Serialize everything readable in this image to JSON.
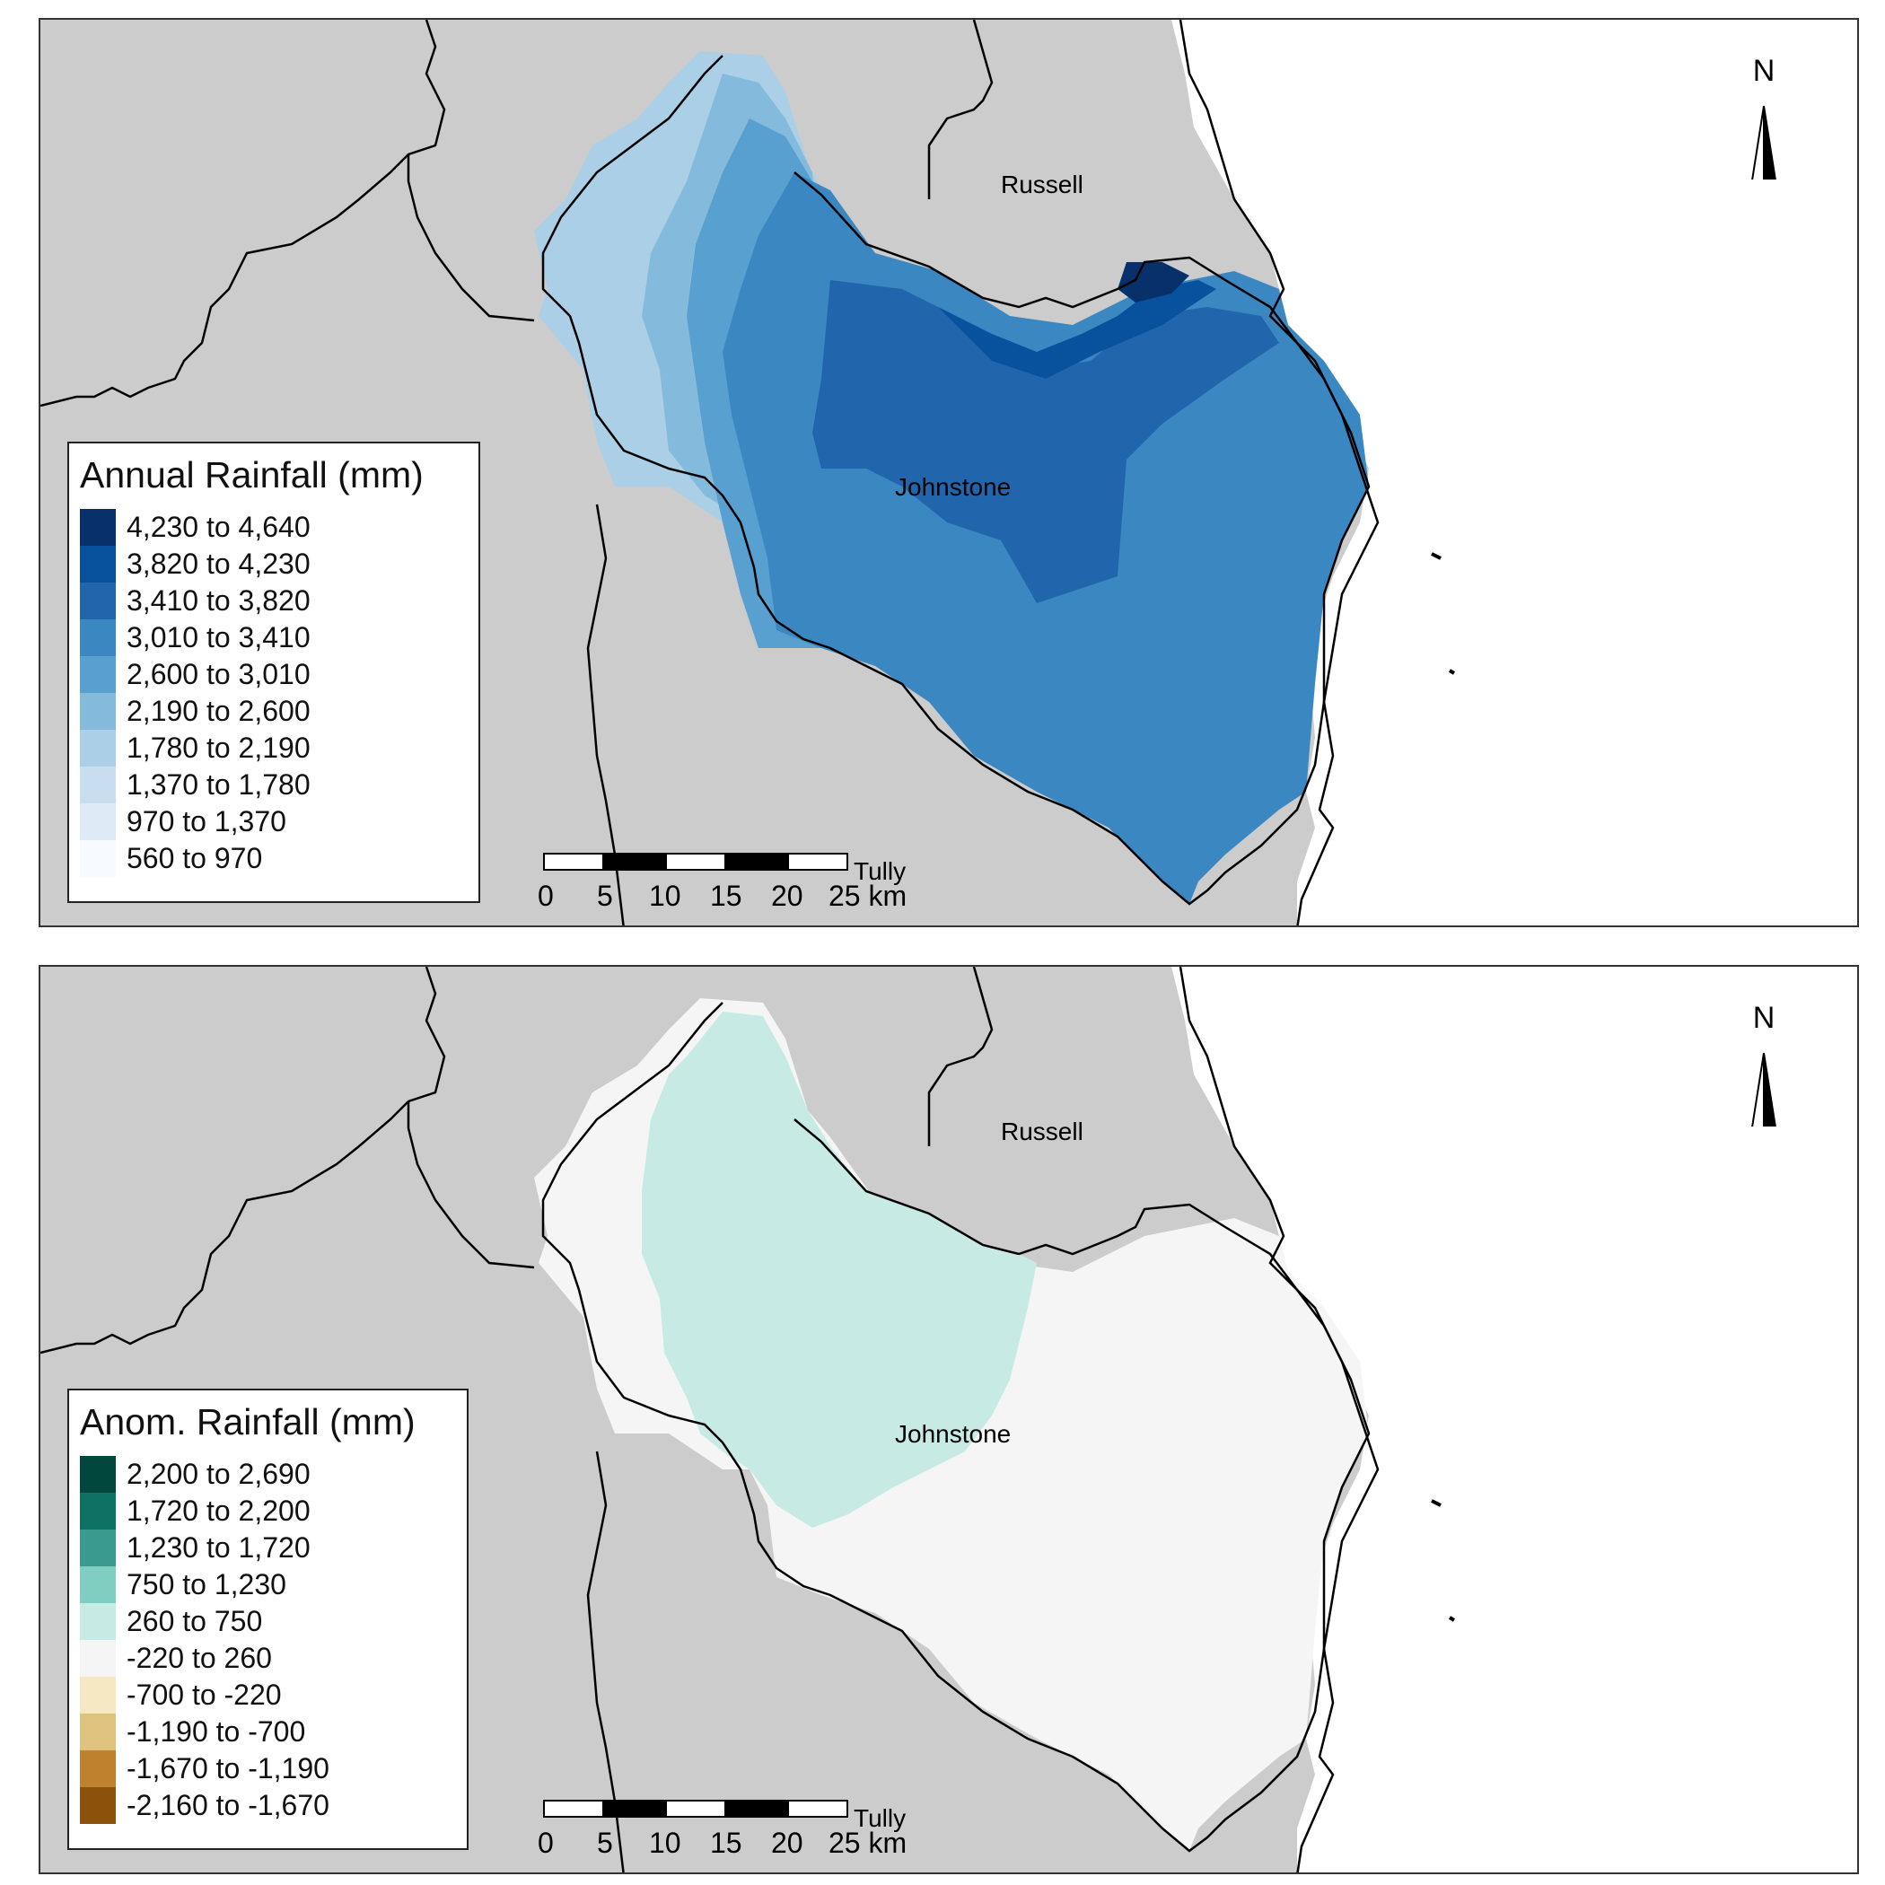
{
  "maps": [
    {
      "legend": {
        "title": "Annual Rainfall (mm)",
        "classes": [
          {
            "label": "4,230 to 4,640",
            "color": "#08306b"
          },
          {
            "label": "3,820 to 4,230",
            "color": "#08519c"
          },
          {
            "label": "3,410 to 3,820",
            "color": "#2166ac"
          },
          {
            "label": "3,010 to 3,410",
            "color": "#3a87c2"
          },
          {
            "label": "2,600 to 3,010",
            "color": "#58a0d0"
          },
          {
            "label": "2,190 to 2,600",
            "color": "#84badb"
          },
          {
            "label": "1,780 to 2,190",
            "color": "#aacfe6"
          },
          {
            "label": "1,370 to 1,780",
            "color": "#c8ddf0"
          },
          {
            "label": "970 to 1,370",
            "color": "#deebf7"
          },
          {
            "label": "560 to 970",
            "color": "#f7fbff"
          }
        ]
      },
      "place_labels": [
        "Russell",
        "Johnstone",
        "Tully"
      ],
      "north_label": "N",
      "scale": {
        "ticks": [
          "0",
          "5",
          "10",
          "15",
          "20",
          "25 km"
        ]
      }
    },
    {
      "legend": {
        "title": "Anom. Rainfall (mm)",
        "classes": [
          {
            "label": "2,200 to 2,690",
            "color": "#01473d"
          },
          {
            "label": "1,720 to 2,200",
            "color": "#0d7264"
          },
          {
            "label": "1,230 to 1,720",
            "color": "#3a9a8f"
          },
          {
            "label": "750 to 1,230",
            "color": "#80cdc1"
          },
          {
            "label": "260 to 750",
            "color": "#c7eae5"
          },
          {
            "label": "-220 to 260",
            "color": "#f5f5f5"
          },
          {
            "label": "-700 to -220",
            "color": "#f6e8c3"
          },
          {
            "label": "-1,190 to -700",
            "color": "#dfc27d"
          },
          {
            "label": "-1,670 to -1,190",
            "color": "#bf812d"
          },
          {
            "label": "-2,160 to -1,670",
            "color": "#8c510a"
          }
        ]
      },
      "place_labels": [
        "Russell",
        "Johnstone",
        "Tully"
      ],
      "north_label": "N",
      "scale": {
        "ticks": [
          "0",
          "5",
          "10",
          "15",
          "20",
          "25 km"
        ]
      }
    }
  ],
  "colors": {
    "land": "#cccccc",
    "sea": "#ffffff",
    "boundary": "#000000"
  }
}
